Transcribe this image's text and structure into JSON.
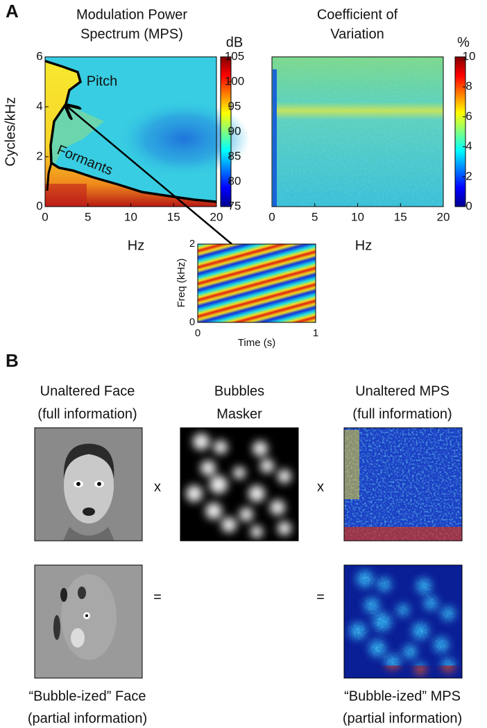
{
  "panel_labels": [
    "A",
    "B"
  ],
  "panel_a": {
    "mps": {
      "title": [
        "Modulation Power",
        "Spectrum (MPS)"
      ],
      "xlabel": "Hz",
      "ylabel": "Cycles/kHz",
      "xlim": [
        0,
        20
      ],
      "xticks": [
        0,
        5,
        10,
        15,
        20
      ],
      "ylim": [
        0,
        6
      ],
      "yticks": [
        0,
        2,
        4,
        6
      ],
      "annotations": [
        "Pitch",
        "Formants"
      ],
      "colorbar": {
        "label": "dB",
        "lim": [
          75,
          105
        ],
        "ticks": [
          75,
          80,
          85,
          90,
          95,
          100,
          105
        ]
      }
    },
    "cv": {
      "title": [
        "Coefficient of",
        "Variation"
      ],
      "xlabel": "Hz",
      "xlim": [
        0,
        20
      ],
      "xticks": [
        0,
        5,
        10,
        15,
        20
      ],
      "colorbar": {
        "label": "%",
        "lim": [
          0,
          10
        ],
        "ticks": [
          0,
          2,
          4,
          6,
          8,
          10
        ]
      }
    },
    "inset": {
      "xlabel": "Time (s)",
      "ylabel": "Freq (kHz)",
      "xlim": [
        0,
        1
      ],
      "xticks": [
        0,
        1
      ],
      "ylim": [
        0,
        2
      ],
      "yticks": [
        0,
        2
      ]
    }
  },
  "panel_b": {
    "top": [
      {
        "title": [
          "Unaltered Face",
          "(full information)"
        ]
      },
      {
        "title": [
          "Bubbles",
          "Masker"
        ]
      },
      {
        "title": [
          "Unaltered MPS",
          "(full information)"
        ]
      }
    ],
    "operators": [
      "x",
      "x",
      "=",
      "="
    ],
    "bottom": [
      {
        "title": [
          "“Bubble-ized” Face",
          "(partial information)"
        ]
      },
      {
        "title": [
          "“Bubble-ized” MPS",
          "(partial information)"
        ]
      }
    ]
  }
}
